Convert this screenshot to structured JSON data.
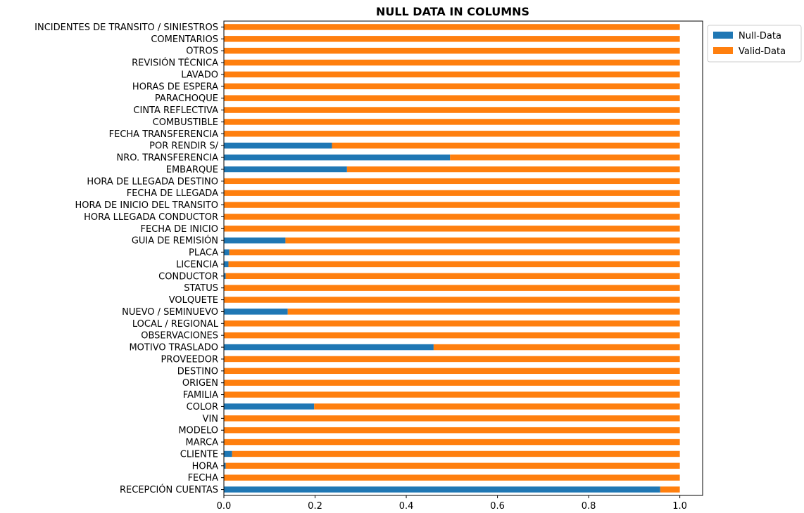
{
  "chart_data": {
    "type": "bar",
    "orientation": "horizontal",
    "stacked": true,
    "title": "NULL DATA IN COLUMNS",
    "xlabel": "",
    "ylabel": "",
    "xlim": [
      0,
      1.05
    ],
    "xticks": [
      "0.0",
      "0.2",
      "0.4",
      "0.6",
      "0.8",
      "1.0"
    ],
    "grid": false,
    "legend_position": "top-right-outside",
    "categories": [
      "RECEPCIÓN CUENTAS",
      "FECHA",
      "HORA",
      "CLIENTE",
      "MARCA",
      "MODELO",
      "VIN",
      "COLOR",
      "FAMILIA",
      "ORIGEN",
      "DESTINO",
      "PROVEEDOR",
      "MOTIVO TRASLADO",
      "OBSERVACIONES",
      "LOCAL / REGIONAL",
      "NUEVO / SEMINUEVO",
      "VOLQUETE",
      "STATUS",
      "CONDUCTOR",
      "LICENCIA",
      "PLACA",
      "GUIA DE REMISIÓN",
      "FECHA DE INICIO",
      "HORA LLEGADA CONDUCTOR",
      "HORA DE INICIO DEL TRANSITO",
      "FECHA DE LLEGADA",
      "HORA DE LLEGADA DESTINO",
      "EMBARQUE",
      "NRO. TRANSFERENCIA",
      "POR RENDIR S/",
      "FECHA TRANSFERENCIA",
      "COMBUSTIBLE",
      "CINTA REFLECTIVA",
      "PARACHOQUE",
      "HORAS DE ESPERA",
      "LAVADO",
      "REVISIÓN TÉCNICA",
      "OTROS",
      "COMENTARIOS",
      "INCIDENTES DE TRANSITO / SINIESTROS"
    ],
    "series": [
      {
        "name": "Null-Data",
        "color": "#1f77b4",
        "values": [
          0.957,
          0.0,
          0.004,
          0.018,
          0.0,
          0.0,
          0.0,
          0.198,
          0.0,
          0.0,
          0.0,
          0.0,
          0.46,
          0.0,
          0.0,
          0.14,
          0.0,
          0.0,
          0.004,
          0.01,
          0.012,
          0.135,
          0.0,
          0.0,
          0.0,
          0.0,
          0.0,
          0.27,
          0.496,
          0.237,
          0.0,
          0.0,
          0.0,
          0.0,
          0.0,
          0.0,
          0.0,
          0.0,
          0.0,
          0.0
        ]
      },
      {
        "name": "Valid-Data",
        "color": "#ff7f0e",
        "values": [
          0.043,
          1.0,
          0.996,
          0.982,
          1.0,
          1.0,
          1.0,
          0.802,
          1.0,
          1.0,
          1.0,
          1.0,
          0.54,
          1.0,
          1.0,
          0.86,
          1.0,
          1.0,
          0.996,
          0.99,
          0.988,
          0.865,
          1.0,
          1.0,
          1.0,
          1.0,
          1.0,
          0.73,
          0.504,
          0.763,
          1.0,
          1.0,
          1.0,
          1.0,
          1.0,
          1.0,
          1.0,
          1.0,
          1.0,
          1.0
        ]
      }
    ]
  }
}
